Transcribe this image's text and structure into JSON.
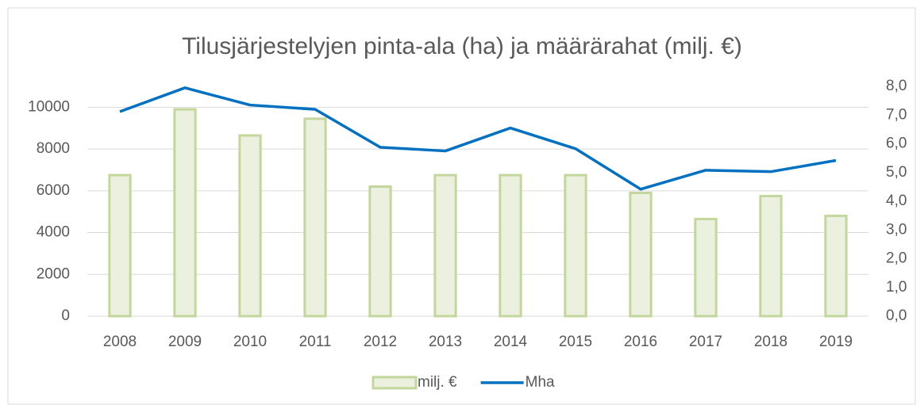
{
  "chart_data": {
    "type": "bar",
    "title": "Tilusjärjestelyjen pinta-ala (ha) ja määrärahat (milj. €)",
    "categories": [
      "2008",
      "2009",
      "2010",
      "2011",
      "2012",
      "2013",
      "2014",
      "2015",
      "2016",
      "2017",
      "2018",
      "2019"
    ],
    "series": [
      {
        "name": "milj. €",
        "type": "bar",
        "color": "#ebf1de",
        "edge": "#c3d69b",
        "values": [
          6750,
          9900,
          8650,
          9450,
          6200,
          6750,
          6750,
          6750,
          5900,
          4650,
          5750,
          4800
        ]
      },
      {
        "name": "Mha",
        "type": "line",
        "axis": "y2",
        "color": "#0070c0",
        "values": [
          7.12,
          7.95,
          7.35,
          7.2,
          5.88,
          5.75,
          6.55,
          5.83,
          4.42,
          5.08,
          5.03,
          5.42
        ]
      }
    ],
    "ylim": [
      0,
      11000
    ],
    "yticks": [
      0,
      2000,
      4000,
      6000,
      8000,
      10000
    ],
    "y2lim": [
      0,
      8
    ],
    "y2ticks": [
      {
        "value": 0,
        "label": "0,0"
      },
      {
        "value": 1,
        "label": "1,0"
      },
      {
        "value": 2,
        "label": "2,0"
      },
      {
        "value": 3,
        "label": "3,0"
      },
      {
        "value": 4,
        "label": "4,0"
      },
      {
        "value": 5,
        "label": "5,0"
      },
      {
        "value": 6,
        "label": "6,0"
      },
      {
        "value": 7,
        "label": "7,0"
      },
      {
        "value": 8,
        "label": "8,0"
      }
    ],
    "grid": true,
    "legend": "bottom"
  }
}
